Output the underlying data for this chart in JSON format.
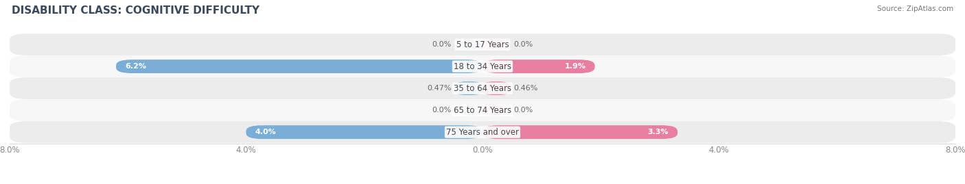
{
  "title": "DISABILITY CLASS: COGNITIVE DIFFICULTY",
  "source": "Source: ZipAtlas.com",
  "categories": [
    "5 to 17 Years",
    "18 to 34 Years",
    "35 to 64 Years",
    "65 to 74 Years",
    "75 Years and over"
  ],
  "male_values": [
    0.0,
    6.2,
    0.47,
    0.0,
    4.0
  ],
  "female_values": [
    0.0,
    1.9,
    0.46,
    0.0,
    3.3
  ],
  "male_color": "#7aaed6",
  "female_color": "#e87fa0",
  "male_stub_color": "#aac8e0",
  "female_stub_color": "#f0a8bc",
  "x_max": 8.0,
  "bar_height": 0.62,
  "stub_size": 0.35,
  "row_bg_colors": [
    "#ececec",
    "#f7f7f7",
    "#ececec",
    "#f7f7f7",
    "#ececec"
  ],
  "fig_bg": "#ffffff",
  "title_fontsize": 11,
  "label_fontsize": 8.5,
  "value_fontsize": 8.0,
  "tick_fontsize": 8.5,
  "source_fontsize": 7.5,
  "title_color": "#3a4a5a",
  "source_color": "#777777",
  "label_color": "#444444",
  "value_color_inside": "#ffffff",
  "value_color_outside": "#666666"
}
